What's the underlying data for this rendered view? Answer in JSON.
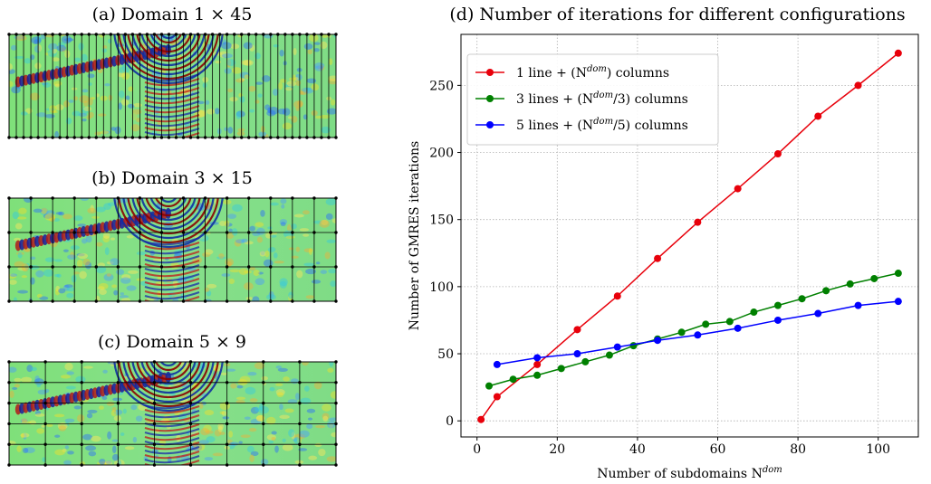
{
  "panels": [
    {
      "title": "(a) Domain 1 × 45",
      "rows": 1,
      "cols": 45
    },
    {
      "title": "(b) Domain 3 × 15",
      "rows": 3,
      "cols": 15
    },
    {
      "title": "(c) Domain 5 × 9",
      "rows": 5,
      "cols": 9
    }
  ],
  "chart_data": {
    "type": "line",
    "title": "(d) Number of iterations for different configurations",
    "xlabel": "Number of subdomains N^dom",
    "ylabel": "Number of GMRES iterations",
    "xlim": [
      -4,
      110
    ],
    "ylim": [
      -12,
      288
    ],
    "xticks": [
      0,
      20,
      40,
      60,
      80,
      100
    ],
    "yticks": [
      0,
      50,
      100,
      150,
      200,
      250
    ],
    "grid": true,
    "legend_position": "top-left",
    "series": [
      {
        "name": "1 line + (N^dom) columns",
        "legend_prefix": "1 line + (N",
        "legend_sup": "dom",
        "legend_suffix": ") columns",
        "color": "#e8000b",
        "x": [
          1,
          5,
          15,
          25,
          35,
          45,
          55,
          65,
          75,
          85,
          95,
          105
        ],
        "y": [
          1,
          18,
          42,
          68,
          93,
          121,
          148,
          173,
          199,
          227,
          250,
          274
        ]
      },
      {
        "name": "3 lines + (N^dom/3) columns",
        "legend_prefix": "3 lines + (N",
        "legend_sup": "dom",
        "legend_suffix": "/3) columns",
        "color": "#008000",
        "x": [
          3,
          9,
          15,
          21,
          27,
          33,
          39,
          45,
          51,
          57,
          63,
          69,
          75,
          81,
          87,
          93,
          99,
          105
        ],
        "y": [
          26,
          31,
          34,
          39,
          44,
          49,
          56,
          61,
          66,
          72,
          74,
          81,
          86,
          91,
          97,
          102,
          106,
          110
        ]
      },
      {
        "name": "5 lines + (N^dom/5) columns",
        "legend_prefix": "5 lines + (N",
        "legend_sup": "dom",
        "legend_suffix": "/5) columns",
        "color": "#0000ff",
        "x": [
          5,
          15,
          25,
          35,
          45,
          55,
          65,
          75,
          85,
          95,
          105
        ],
        "y": [
          42,
          47,
          50,
          55,
          60,
          64,
          69,
          75,
          80,
          86,
          89
        ]
      }
    ]
  }
}
